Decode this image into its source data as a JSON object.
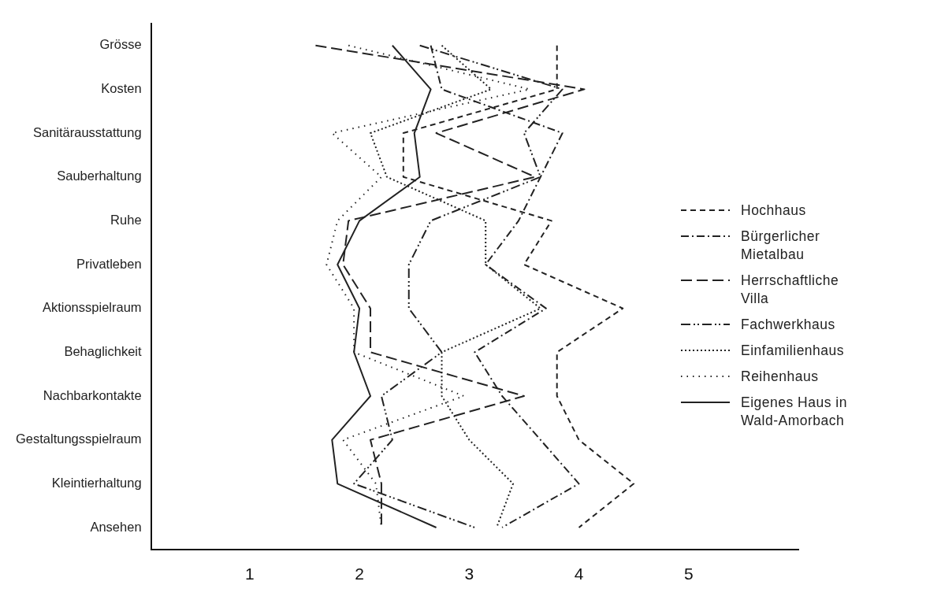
{
  "chart_data": {
    "type": "line",
    "orientation": "horizontal",
    "categories": [
      "Grösse",
      "Kosten",
      "Sanitärausstattung",
      "Sauberhaltung",
      "Ruhe",
      "Privatleben",
      "Aktionsspielraum",
      "Behaglichkeit",
      "Nachbarkontakte",
      "Gestaltungsspielraum",
      "Kleintierhaltung",
      "Ansehen"
    ],
    "xlim": [
      0.1,
      6
    ],
    "xticks": [
      1,
      2,
      3,
      4,
      5
    ],
    "grid": false,
    "legend": "right",
    "series": [
      {
        "name": "Hochhaus",
        "color": "#222222",
        "line_style": "dashed",
        "values": [
          3.8,
          3.8,
          2.4,
          2.4,
          3.75,
          3.5,
          4.4,
          3.8,
          3.8,
          4,
          4.5,
          4
        ]
      },
      {
        "name": "Bürgerlicher Mietalbau",
        "color": "#222222",
        "line_style": "dashdot",
        "values": [
          2.65,
          2.75,
          3.85,
          3.65,
          3.45,
          3.15,
          3.7,
          3.05,
          3.3,
          3.65,
          4,
          3.3
        ]
      },
      {
        "name": "Herrschaftliche Villa",
        "color": "#222222",
        "line_style": "longdash",
        "values": [
          1.6,
          4.05,
          2.7,
          3.6,
          1.9,
          1.85,
          2.1,
          2.1,
          3.5,
          2.1,
          2.2,
          2.2
        ]
      },
      {
        "name": "Fachwerkhaus",
        "color": "#222222",
        "line_style": "dashdotdot",
        "values": [
          2.55,
          3.85,
          3.5,
          3.65,
          2.65,
          2.45,
          2.45,
          2.75,
          2.2,
          2.3,
          1.95,
          3.05
        ]
      },
      {
        "name": "Einfamilienhaus",
        "color": "#222222",
        "line_style": "dotted",
        "values": [
          2.75,
          3.2,
          2.1,
          2.25,
          3.15,
          3.15,
          3.65,
          2.75,
          2.75,
          3,
          3.4,
          3.25
        ]
      },
      {
        "name": "Reihenhaus",
        "color": "#222222",
        "line_style": "sparsedot",
        "values": [
          1.9,
          3.55,
          1.75,
          2.2,
          1.8,
          1.7,
          1.95,
          1.95,
          2.95,
          1.85,
          2.15,
          2.2
        ]
      },
      {
        "name": "Eigenes Haus in Wald-Amorbach",
        "color": "#222222",
        "line_style": "solid",
        "values": [
          2.3,
          2.65,
          2.5,
          2.55,
          2,
          1.8,
          2,
          1.95,
          2.1,
          1.75,
          1.8,
          2.7
        ]
      }
    ]
  }
}
